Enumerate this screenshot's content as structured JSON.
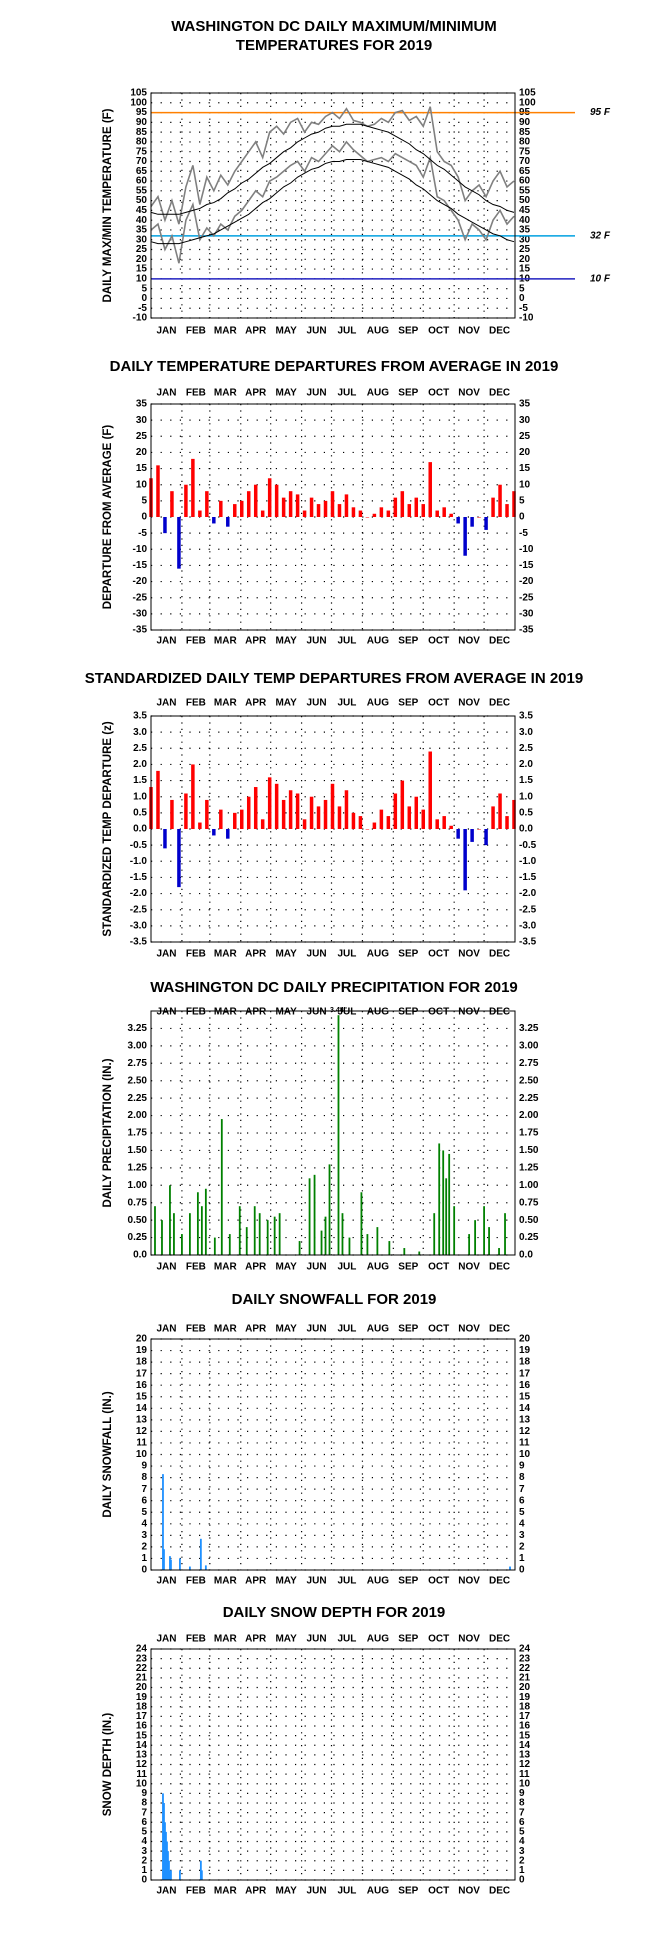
{
  "chart_data": [
    {
      "type": "line",
      "title": [
        "WASHINGTON DC DAILY MAXIMUM/MINIMUM",
        "TEMPERATURES FOR 2019"
      ],
      "y_label": "DAILY MAX/MIN TEMPERATURE (F)",
      "x": [
        1,
        8,
        15,
        22,
        29,
        36,
        43,
        50,
        57,
        64,
        71,
        78,
        85,
        92,
        99,
        106,
        113,
        120,
        127,
        134,
        141,
        148,
        155,
        162,
        169,
        176,
        183,
        190,
        197,
        204,
        211,
        218,
        225,
        232,
        239,
        246,
        253,
        260,
        267,
        274,
        281,
        288,
        295,
        302,
        309,
        316,
        323,
        330,
        337,
        344,
        351,
        358,
        365
      ],
      "series": [
        {
          "name": "Daily Max",
          "color": "#808080",
          "width": 1.6,
          "values": [
            47,
            52,
            40,
            50,
            38,
            57,
            68,
            48,
            62,
            55,
            63,
            58,
            65,
            70,
            75,
            80,
            72,
            85,
            88,
            84,
            90,
            92,
            85,
            90,
            89,
            93,
            95,
            92,
            97,
            91,
            90,
            88,
            89,
            92,
            90,
            95,
            96,
            91,
            93,
            88,
            98,
            75,
            70,
            68,
            62,
            50,
            55,
            58,
            52,
            60,
            65,
            57,
            60
          ]
        },
        {
          "name": "Daily Min",
          "color": "#808080",
          "width": 1.6,
          "values": [
            35,
            38,
            25,
            32,
            18,
            40,
            48,
            30,
            36,
            32,
            38,
            35,
            42,
            45,
            50,
            55,
            52,
            60,
            62,
            65,
            68,
            70,
            65,
            72,
            70,
            74,
            78,
            75,
            80,
            76,
            73,
            70,
            71,
            72,
            70,
            74,
            72,
            70,
            68,
            62,
            72,
            52,
            50,
            45,
            40,
            30,
            38,
            35,
            30,
            40,
            45,
            38,
            42
          ]
        },
        {
          "name": "Normal Max",
          "color": "#000000",
          "width": 1,
          "values": [
            44,
            43,
            43,
            43,
            43,
            44,
            45,
            46,
            48,
            49,
            51,
            54,
            56,
            59,
            61,
            64,
            67,
            69,
            72,
            75,
            77,
            80,
            82,
            84,
            85,
            87,
            88,
            88,
            89,
            89,
            89,
            88,
            87,
            86,
            85,
            83,
            81,
            79,
            76,
            74,
            71,
            68,
            66,
            63,
            60,
            57,
            55,
            53,
            50,
            48,
            47,
            45,
            44
          ]
        },
        {
          "name": "Normal Min",
          "color": "#000000",
          "width": 1,
          "values": [
            29,
            28,
            28,
            28,
            28,
            29,
            30,
            31,
            32,
            33,
            35,
            37,
            39,
            41,
            43,
            46,
            49,
            51,
            54,
            57,
            59,
            62,
            64,
            66,
            67,
            69,
            70,
            70,
            71,
            71,
            71,
            70,
            69,
            68,
            67,
            65,
            63,
            61,
            58,
            56,
            53,
            50,
            48,
            46,
            43,
            41,
            39,
            37,
            35,
            33,
            32,
            30,
            29
          ]
        }
      ],
      "reference_lines": [
        {
          "value": 95,
          "label": "95 F",
          "color": "#ff8000"
        },
        {
          "value": 32,
          "label": "32 F",
          "color": "#00a0e0"
        },
        {
          "value": 10,
          "label": "10 F",
          "color": "#2020c0"
        }
      ],
      "xlim": [
        1,
        366
      ],
      "xticks": [
        {
          "value": 1,
          "label": "JAN"
        },
        {
          "value": 32,
          "label": "FEB"
        },
        {
          "value": 60,
          "label": "MAR"
        },
        {
          "value": 91,
          "label": "APR"
        },
        {
          "value": 121,
          "label": "MAY"
        },
        {
          "value": 152,
          "label": "JUN"
        },
        {
          "value": 182,
          "label": "JUL"
        },
        {
          "value": 213,
          "label": "AUG"
        },
        {
          "value": 244,
          "label": "SEP"
        },
        {
          "value": 274,
          "label": "OCT"
        },
        {
          "value": 305,
          "label": "NOV"
        },
        {
          "value": 335,
          "label": "DEC"
        }
      ],
      "ylim": [
        -10,
        105
      ],
      "yticks": [
        -10,
        -5,
        0,
        5,
        10,
        15,
        20,
        25,
        30,
        35,
        40,
        45,
        50,
        55,
        60,
        65,
        70,
        75,
        80,
        85,
        90,
        95,
        100,
        105
      ],
      "grid": true
    },
    {
      "type": "bar",
      "title": "DAILY TEMPERATURE DEPARTURES FROM AVERAGE IN 2019",
      "y_label": "DEPARTURE FROM AVERAGE (F)",
      "x": [
        1,
        8,
        15,
        22,
        29,
        36,
        43,
        50,
        57,
        64,
        71,
        78,
        85,
        92,
        99,
        106,
        113,
        120,
        127,
        134,
        141,
        148,
        155,
        162,
        169,
        176,
        183,
        190,
        197,
        204,
        211,
        218,
        225,
        232,
        239,
        246,
        253,
        260,
        267,
        274,
        281,
        288,
        295,
        302,
        309,
        316,
        323,
        330,
        337,
        344,
        351,
        358,
        365
      ],
      "values": [
        12,
        16,
        -5,
        8,
        -16,
        10,
        18,
        2,
        8,
        -2,
        5,
        -3,
        4,
        5,
        8,
        10,
        2,
        12,
        10,
        6,
        8,
        7,
        2,
        6,
        4,
        5,
        8,
        4,
        7,
        3,
        2,
        0,
        1,
        3,
        2,
        6,
        8,
        4,
        6,
        4,
        17,
        2,
        3,
        1,
        -2,
        -12,
        -3,
        0,
        -4,
        6,
        10,
        4,
        8
      ],
      "positive_color": "#ff0000",
      "negative_color": "#0000cc",
      "xlim": [
        1,
        366
      ],
      "xticks": [
        {
          "value": 1,
          "label": "JAN"
        },
        {
          "value": 32,
          "label": "FEB"
        },
        {
          "value": 60,
          "label": "MAR"
        },
        {
          "value": 91,
          "label": "APR"
        },
        {
          "value": 121,
          "label": "MAY"
        },
        {
          "value": 152,
          "label": "JUN"
        },
        {
          "value": 182,
          "label": "JUL"
        },
        {
          "value": 213,
          "label": "AUG"
        },
        {
          "value": 244,
          "label": "SEP"
        },
        {
          "value": 274,
          "label": "OCT"
        },
        {
          "value": 305,
          "label": "NOV"
        },
        {
          "value": 335,
          "label": "DEC"
        }
      ],
      "ylim": [
        -35,
        35
      ],
      "yticks": [
        -35,
        -30,
        -25,
        -20,
        -15,
        -10,
        -5,
        0,
        5,
        10,
        15,
        20,
        25,
        30,
        35
      ],
      "grid": true
    },
    {
      "type": "bar",
      "title": "STANDARDIZED DAILY TEMP DEPARTURES FROM AVERAGE IN 2019",
      "y_label": "STANDARDIZED TEMP DEPARTURE (z)",
      "x": [
        1,
        8,
        15,
        22,
        29,
        36,
        43,
        50,
        57,
        64,
        71,
        78,
        85,
        92,
        99,
        106,
        113,
        120,
        127,
        134,
        141,
        148,
        155,
        162,
        169,
        176,
        183,
        190,
        197,
        204,
        211,
        218,
        225,
        232,
        239,
        246,
        253,
        260,
        267,
        274,
        281,
        288,
        295,
        302,
        309,
        316,
        323,
        330,
        337,
        344,
        351,
        358,
        365
      ],
      "values": [
        1.3,
        1.8,
        -0.6,
        0.9,
        -1.8,
        1.1,
        2.0,
        0.2,
        0.9,
        -0.2,
        0.6,
        -0.3,
        0.5,
        0.6,
        1.0,
        1.3,
        0.3,
        1.6,
        1.4,
        0.9,
        1.2,
        1.1,
        0.3,
        1.0,
        0.7,
        0.9,
        1.4,
        0.7,
        1.2,
        0.5,
        0.4,
        0.0,
        0.2,
        0.6,
        0.4,
        1.1,
        1.5,
        0.7,
        1.0,
        0.6,
        2.4,
        0.3,
        0.4,
        0.1,
        -0.3,
        -1.9,
        -0.4,
        0.0,
        -0.5,
        0.7,
        1.1,
        0.4,
        0.9
      ],
      "positive_color": "#ff0000",
      "negative_color": "#0000cc",
      "xlim": [
        1,
        366
      ],
      "xticks": [
        {
          "value": 1,
          "label": "JAN"
        },
        {
          "value": 32,
          "label": "FEB"
        },
        {
          "value": 60,
          "label": "MAR"
        },
        {
          "value": 91,
          "label": "APR"
        },
        {
          "value": 121,
          "label": "MAY"
        },
        {
          "value": 152,
          "label": "JUN"
        },
        {
          "value": 182,
          "label": "JUL"
        },
        {
          "value": 213,
          "label": "AUG"
        },
        {
          "value": 244,
          "label": "SEP"
        },
        {
          "value": 274,
          "label": "OCT"
        },
        {
          "value": 305,
          "label": "NOV"
        },
        {
          "value": 335,
          "label": "DEC"
        }
      ],
      "ylim": [
        -3.5,
        3.5
      ],
      "yticks": [
        -3.5,
        {
          "value": -3,
          "label": "-3.0"
        },
        -2.5,
        {
          "value": -2,
          "label": "-2.0"
        },
        -1.5,
        {
          "value": -1,
          "label": "-1.0"
        },
        -0.5,
        {
          "value": 0,
          "label": "0.0"
        },
        0.5,
        {
          "value": 1,
          "label": "1.0"
        },
        1.5,
        {
          "value": 2,
          "label": "2.0"
        },
        2.5,
        {
          "value": 3,
          "label": "3.0"
        },
        3.5
      ],
      "grid": true
    },
    {
      "type": "bar",
      "title": "WASHINGTON DC DAILY PRECIPITATION FOR 2019",
      "y_label": "DAILY PRECIPITATION (IN.)",
      "x": [
        5,
        12,
        20,
        24,
        32,
        40,
        48,
        52,
        56,
        65,
        72,
        80,
        90,
        97,
        105,
        110,
        118,
        125,
        130,
        150,
        160,
        165,
        172,
        176,
        180,
        189,
        193,
        200,
        212,
        218,
        228,
        240,
        255,
        270,
        285,
        290,
        294,
        297,
        300,
        305,
        320,
        326,
        335,
        340,
        350,
        356
      ],
      "values": [
        0.7,
        0.5,
        1.0,
        0.6,
        0.3,
        0.6,
        0.9,
        0.7,
        0.95,
        0.25,
        1.95,
        0.3,
        0.7,
        0.4,
        0.7,
        0.6,
        0.5,
        0.55,
        0.6,
        0.2,
        1.1,
        1.15,
        0.35,
        0.55,
        1.3,
        3.44,
        0.6,
        0.25,
        0.9,
        0.3,
        0.4,
        0.2,
        0.1,
        0.05,
        0.6,
        1.6,
        1.5,
        1.1,
        1.45,
        0.7,
        0.3,
        0.5,
        0.7,
        0.4,
        0.1,
        0.6
      ],
      "value_labels": [
        null,
        null,
        null,
        null,
        null,
        null,
        null,
        null,
        null,
        null,
        null,
        null,
        null,
        null,
        null,
        null,
        null,
        null,
        null,
        null,
        null,
        null,
        null,
        null,
        null,
        "3.44\"",
        null,
        null,
        null,
        null,
        null,
        null,
        null,
        null,
        null,
        null,
        null,
        null,
        null,
        null,
        null,
        null,
        null,
        null,
        null,
        null
      ],
      "color": "#008000",
      "xlim": [
        1,
        366
      ],
      "xticks": [
        {
          "value": 1,
          "label": "JAN"
        },
        {
          "value": 32,
          "label": "FEB"
        },
        {
          "value": 60,
          "label": "MAR"
        },
        {
          "value": 91,
          "label": "APR"
        },
        {
          "value": 121,
          "label": "MAY"
        },
        {
          "value": 152,
          "label": "JUN"
        },
        {
          "value": 182,
          "label": "JUL"
        },
        {
          "value": 213,
          "label": "AUG"
        },
        {
          "value": 244,
          "label": "SEP"
        },
        {
          "value": 274,
          "label": "OCT"
        },
        {
          "value": 305,
          "label": "NOV"
        },
        {
          "value": 335,
          "label": "DEC"
        }
      ],
      "ylim": [
        0,
        3.5
      ],
      "yticks": [
        {
          "value": 0,
          "label": "0.0"
        },
        0.25,
        {
          "value": 0.5,
          "label": "0.50"
        },
        0.75,
        {
          "value": 1,
          "label": "1.00"
        },
        1.25,
        {
          "value": 1.5,
          "label": "1.50"
        },
        1.75,
        {
          "value": 2,
          "label": "2.00"
        },
        2.25,
        {
          "value": 2.5,
          "label": "2.50"
        },
        2.75,
        {
          "value": 3,
          "label": "3.00"
        },
        3.25
      ],
      "grid": true
    },
    {
      "type": "bar",
      "title": "DAILY SNOWFALL FOR 2019",
      "y_label": "DAILY SNOWFALL (IN.)",
      "x": [
        13,
        14,
        20,
        21,
        30,
        40,
        51,
        56,
        361
      ],
      "values": [
        8.3,
        1.8,
        1.2,
        0.9,
        1.0,
        0.3,
        2.7,
        0.4,
        0.3
      ],
      "color": "#1e90ff",
      "xlim": [
        1,
        366
      ],
      "xticks": [
        {
          "value": 1,
          "label": "JAN"
        },
        {
          "value": 32,
          "label": "FEB"
        },
        {
          "value": 60,
          "label": "MAR"
        },
        {
          "value": 91,
          "label": "APR"
        },
        {
          "value": 121,
          "label": "MAY"
        },
        {
          "value": 152,
          "label": "JUN"
        },
        {
          "value": 182,
          "label": "JUL"
        },
        {
          "value": 213,
          "label": "AUG"
        },
        {
          "value": 244,
          "label": "SEP"
        },
        {
          "value": 274,
          "label": "OCT"
        },
        {
          "value": 305,
          "label": "NOV"
        },
        {
          "value": 335,
          "label": "DEC"
        }
      ],
      "ylim": [
        0,
        20
      ],
      "yticks": [
        0,
        1,
        2,
        3,
        4,
        5,
        6,
        7,
        8,
        9,
        10,
        11,
        12,
        13,
        14,
        15,
        16,
        17,
        18,
        19,
        20
      ],
      "grid": true
    },
    {
      "type": "bar",
      "title": "DAILY SNOW DEPTH FOR 2019",
      "y_label": "SNOW DEPTH (IN.)",
      "x": [
        13,
        14,
        15,
        16,
        17,
        18,
        19,
        20,
        21,
        30,
        51,
        52
      ],
      "values": [
        9,
        8,
        6,
        5,
        4,
        3,
        2,
        1,
        1,
        1,
        2,
        1
      ],
      "color": "#1e90ff",
      "xlim": [
        1,
        366
      ],
      "xticks": [
        {
          "value": 1,
          "label": "JAN"
        },
        {
          "value": 32,
          "label": "FEB"
        },
        {
          "value": 60,
          "label": "MAR"
        },
        {
          "value": 91,
          "label": "APR"
        },
        {
          "value": 121,
          "label": "MAY"
        },
        {
          "value": 152,
          "label": "JUN"
        },
        {
          "value": 182,
          "label": "JUL"
        },
        {
          "value": 213,
          "label": "AUG"
        },
        {
          "value": 244,
          "label": "SEP"
        },
        {
          "value": 274,
          "label": "OCT"
        },
        {
          "value": 305,
          "label": "NOV"
        },
        {
          "value": 335,
          "label": "DEC"
        }
      ],
      "ylim": [
        0,
        24
      ],
      "yticks": [
        0,
        1,
        2,
        3,
        4,
        5,
        6,
        7,
        8,
        9,
        10,
        11,
        12,
        13,
        14,
        15,
        16,
        17,
        18,
        19,
        20,
        21,
        22,
        23,
        24
      ],
      "grid": true
    }
  ]
}
